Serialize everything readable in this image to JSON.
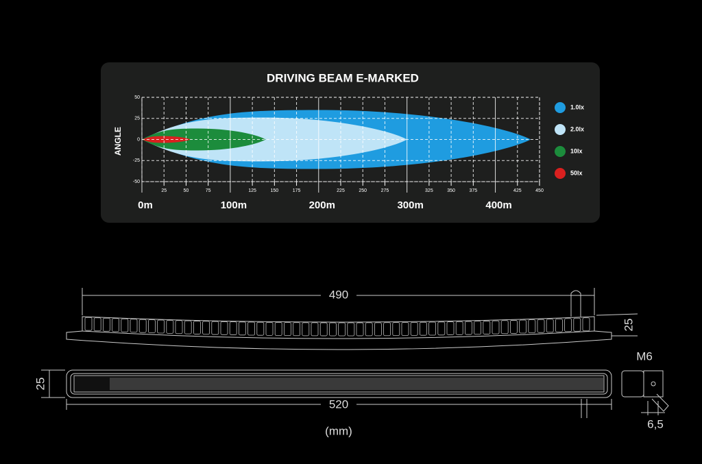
{
  "beam_chart": {
    "title": "DRIVING BEAM E-MARKED",
    "y_label": "ANGLE",
    "xlim": [
      0,
      450
    ],
    "ylim": [
      -50,
      50
    ],
    "yticks": [
      50,
      25,
      0,
      -25,
      -50
    ],
    "xticks": [
      25,
      50,
      75,
      125,
      150,
      175,
      225,
      250,
      275,
      325,
      350,
      375,
      425,
      450
    ],
    "distance_labels": [
      {
        "value": 0,
        "label": "0m"
      },
      {
        "value": 100,
        "label": "100m"
      },
      {
        "value": 200,
        "label": "200m"
      },
      {
        "value": 300,
        "label": "300m"
      },
      {
        "value": 400,
        "label": "400m"
      }
    ],
    "series": [
      {
        "name": "1.0lx",
        "color": "#1f9ce0",
        "reach": 440,
        "half_angle": 35
      },
      {
        "name": "2.0lx",
        "color": "#bfe4f7",
        "reach": 300,
        "half_angle": 26
      },
      {
        "name": "10lx",
        "color": "#1c8c3c",
        "reach": 140,
        "half_angle": 13
      },
      {
        "name": "50lx",
        "color": "#d9201f",
        "reach": 55,
        "half_angle": 4
      }
    ]
  },
  "dimensions": {
    "width_top": "490",
    "height_right": "25",
    "height_left": "25",
    "length": "520",
    "thread": "M6",
    "offset": "6,5",
    "unit": "(mm)"
  }
}
